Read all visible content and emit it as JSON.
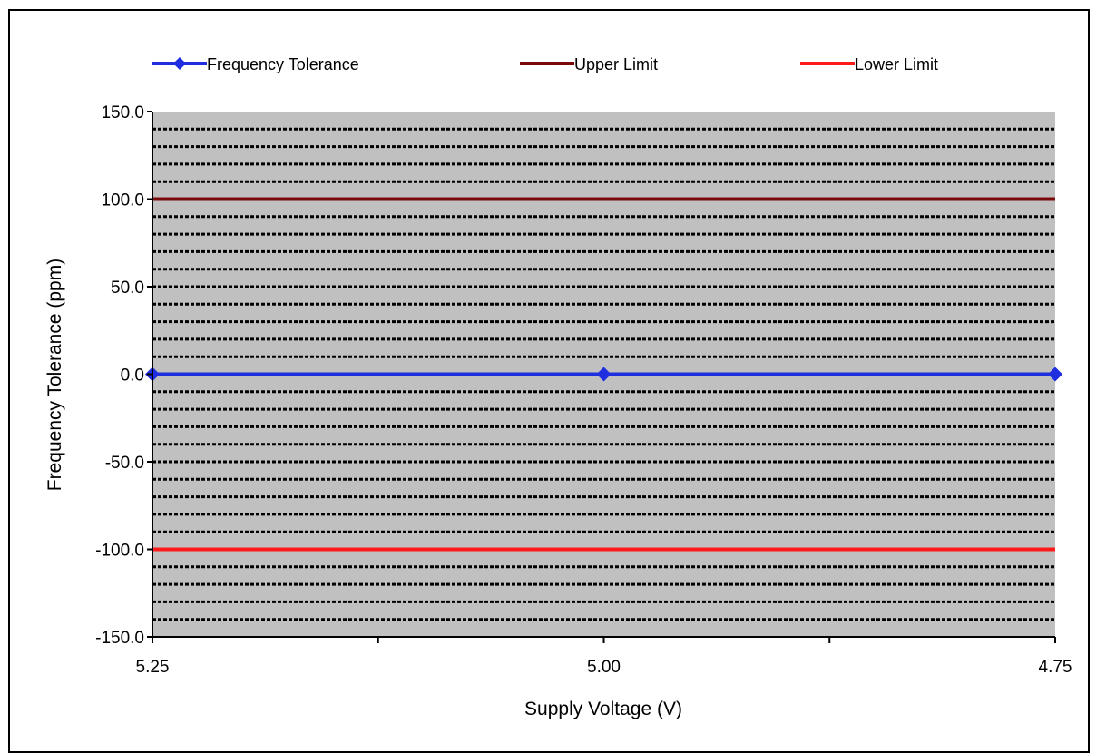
{
  "chart_data": {
    "type": "line",
    "title": "",
    "xlabel": "Supply Voltage (V)",
    "ylabel": "Frequency Tolerance  (ppm)",
    "x_categories": [
      "5.25",
      "5.00",
      "4.75"
    ],
    "ylim": [
      -150.0,
      150.0
    ],
    "y_ticks": [
      "150.0",
      "100.0",
      "50.0",
      "0.0",
      "-50.0",
      "-100.0",
      "-150.0"
    ],
    "y_tick_values": [
      150,
      100,
      50,
      0,
      -50,
      -100,
      -150
    ],
    "grid": true,
    "grid_minor_step": 10,
    "legend_position": "top",
    "plot_background": "#c0c0c0",
    "series": [
      {
        "name": "Frequency Tolerance",
        "values": [
          0.0,
          0.0,
          0.0
        ],
        "color": "#1f2fe0",
        "marker": "diamond"
      },
      {
        "name": "Upper Limit",
        "values": [
          100.0,
          100.0,
          100.0
        ],
        "color": "#7a0a0a",
        "marker": "none"
      },
      {
        "name": "Lower Limit",
        "values": [
          -100.0,
          -100.0,
          -100.0
        ],
        "color": "#ff1a1a",
        "marker": "none"
      }
    ]
  }
}
